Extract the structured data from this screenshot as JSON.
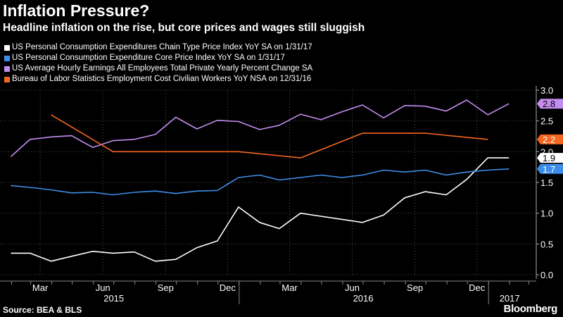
{
  "title": "Inflation Pressure?",
  "subtitle": "Headline inflation on the rise, but core prices and wages still sluggish",
  "source": "Source: BEA & BLS",
  "brand": "Bloomberg",
  "chart_data": {
    "type": "line",
    "title": "Inflation Pressure?",
    "subtitle": "Headline inflation on the rise, but core prices and wages still sluggish",
    "xlabel": "",
    "ylabel": "",
    "ylim": [
      0,
      3.0
    ],
    "yticks": [
      "0.0",
      "0.5",
      "1.0",
      "1.5",
      "2.0",
      "2.5",
      "3.0"
    ],
    "xlim": [
      "2015-01-15",
      "2017-03-10"
    ],
    "month_ticks": [
      "Mar",
      "Jun",
      "Sep",
      "Dec",
      "Mar",
      "Jun",
      "Sep",
      "Dec"
    ],
    "month_tick_dates": [
      "2015-03-15",
      "2015-06-15",
      "2015-09-15",
      "2015-12-15",
      "2016-03-15",
      "2016-06-15",
      "2016-09-15",
      "2016-12-15"
    ],
    "year_ticks": [
      "2015",
      "2016",
      "2017"
    ],
    "year_tick_dates": [
      "2015-07-01",
      "2016-07-01",
      "2017-02-01"
    ],
    "grid": true,
    "legend_position": "top-left",
    "series": [
      {
        "name": "US Personal Consumption Expenditures Chain Type Price Index YoY SA  on 1/31/17",
        "color": "#ffffff",
        "last_label": "1.9",
        "x": [
          "2015-01-31",
          "2015-02-28",
          "2015-03-31",
          "2015-04-30",
          "2015-05-31",
          "2015-06-30",
          "2015-07-31",
          "2015-08-31",
          "2015-09-30",
          "2015-10-31",
          "2015-11-30",
          "2015-12-31",
          "2016-01-31",
          "2016-02-29",
          "2016-03-31",
          "2016-04-30",
          "2016-05-31",
          "2016-06-30",
          "2016-07-31",
          "2016-08-31",
          "2016-09-30",
          "2016-10-31",
          "2016-11-30",
          "2016-12-31",
          "2017-01-31"
        ],
        "values": [
          0.35,
          0.35,
          0.22,
          0.3,
          0.38,
          0.35,
          0.37,
          0.22,
          0.25,
          0.44,
          0.55,
          1.1,
          0.85,
          0.75,
          1.0,
          0.95,
          0.9,
          0.85,
          0.97,
          1.25,
          1.35,
          1.3,
          1.55,
          1.9,
          1.9
        ]
      },
      {
        "name": "US Personal Consumption Expenditure Core Price Index YoY SA  on 1/31/17",
        "color": "#3d8ee8",
        "last_label": "1.7",
        "x": [
          "2015-01-31",
          "2015-02-28",
          "2015-03-31",
          "2015-04-30",
          "2015-05-31",
          "2015-06-30",
          "2015-07-31",
          "2015-08-31",
          "2015-09-30",
          "2015-10-31",
          "2015-11-30",
          "2015-12-31",
          "2016-01-31",
          "2016-02-29",
          "2016-03-31",
          "2016-04-30",
          "2016-05-31",
          "2016-06-30",
          "2016-07-31",
          "2016-08-31",
          "2016-09-30",
          "2016-10-31",
          "2016-11-30",
          "2016-12-31",
          "2017-01-31"
        ],
        "values": [
          1.45,
          1.42,
          1.38,
          1.33,
          1.34,
          1.3,
          1.34,
          1.36,
          1.32,
          1.36,
          1.37,
          1.58,
          1.62,
          1.54,
          1.58,
          1.62,
          1.58,
          1.62,
          1.7,
          1.67,
          1.7,
          1.62,
          1.67,
          1.7,
          1.72
        ]
      },
      {
        "name": "US Average Hourly Earnings All Employees Total Private Yearly Percent Change SA",
        "color": "#c38df0",
        "last_label": "2.8",
        "x": [
          "2015-01-31",
          "2015-02-28",
          "2015-03-31",
          "2015-04-30",
          "2015-05-31",
          "2015-06-30",
          "2015-07-31",
          "2015-08-31",
          "2015-09-30",
          "2015-10-31",
          "2015-11-30",
          "2015-12-31",
          "2016-01-31",
          "2016-02-29",
          "2016-03-31",
          "2016-04-30",
          "2016-05-31",
          "2016-06-30",
          "2016-07-31",
          "2016-08-31",
          "2016-09-30",
          "2016-10-31",
          "2016-11-30",
          "2016-12-31",
          "2017-01-31"
        ],
        "values": [
          1.92,
          2.2,
          2.24,
          2.26,
          2.07,
          2.18,
          2.2,
          2.28,
          2.56,
          2.37,
          2.51,
          2.49,
          2.36,
          2.43,
          2.61,
          2.52,
          2.65,
          2.76,
          2.55,
          2.75,
          2.74,
          2.66,
          2.84,
          2.6,
          2.78
        ]
      },
      {
        "name": "Bureau of Labor Statistics Employment Cost Civilian Workers YoY NSA  on 12/31/16",
        "color": "#f5661f",
        "last_label": "2.2",
        "x": [
          "2015-03-31",
          "2015-06-30",
          "2015-09-30",
          "2015-12-31",
          "2016-03-31",
          "2016-06-30",
          "2016-09-30",
          "2016-12-31"
        ],
        "values": [
          2.6,
          2.0,
          2.0,
          2.0,
          1.9,
          2.3,
          2.3,
          2.2
        ]
      }
    ]
  }
}
